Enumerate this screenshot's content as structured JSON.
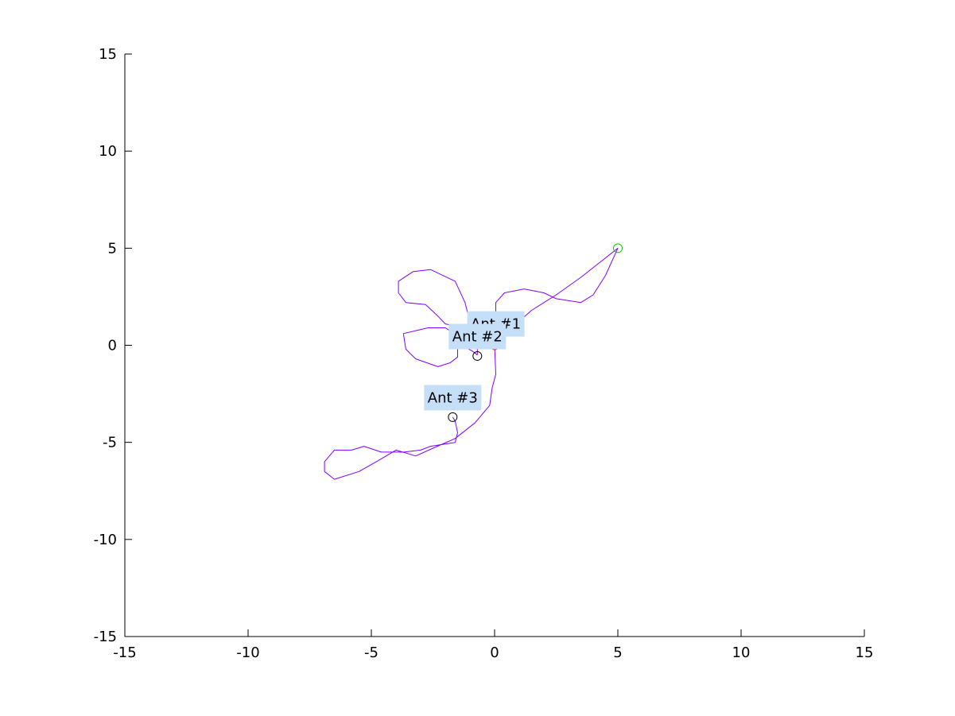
{
  "chart_data": {
    "type": "line",
    "xlim": [
      -15,
      15
    ],
    "ylim": [
      -15,
      15
    ],
    "xticks": [
      -15,
      -10,
      -5,
      0,
      5,
      10,
      15
    ],
    "yticks": [
      -15,
      -10,
      -5,
      0,
      5,
      10,
      15
    ],
    "xtick_labels": [
      "-15",
      "-10",
      "-5",
      "0",
      "5",
      "10",
      "15"
    ],
    "ytick_labels": [
      "-15",
      "-10",
      "-5",
      "0",
      "5",
      "10",
      "15"
    ],
    "grid": false,
    "title": "",
    "xlabel": "",
    "ylabel": "",
    "colors": {
      "trail": "#7f00ff",
      "origin_marker": "#ff0000",
      "target_marker": "#00cc00",
      "ant_marker": "#000000",
      "label_bg": "#c6dff8",
      "axis": "#000000"
    },
    "series": [
      {
        "values": [
          [
            0,
            0
          ],
          [
            0.05,
            -1.5
          ],
          [
            -0.1,
            -2.2
          ],
          [
            -0.2,
            -3.1
          ],
          [
            -0.8,
            -4.0
          ],
          [
            -1.6,
            -4.8
          ],
          [
            -2.5,
            -5.3
          ],
          [
            -3.2,
            -5.7
          ],
          [
            -4.0,
            -5.4
          ],
          [
            -4.8,
            -6.0
          ],
          [
            -5.5,
            -6.5
          ],
          [
            -6.5,
            -6.9
          ],
          [
            -6.9,
            -6.5
          ],
          [
            -6.9,
            -6.0
          ],
          [
            -6.5,
            -5.4
          ],
          [
            -5.8,
            -5.4
          ],
          [
            -5.3,
            -5.2
          ],
          [
            -4.6,
            -5.5
          ],
          [
            -3.7,
            -5.5
          ],
          [
            -3.0,
            -5.4
          ],
          [
            -2.6,
            -5.2
          ],
          [
            -1.6,
            -5.0
          ]
        ]
      },
      {
        "values": [
          [
            -1.6,
            -5.0
          ],
          [
            -1.5,
            -4.5
          ],
          [
            -1.6,
            -3.9
          ],
          [
            -1.7,
            -3.7
          ]
        ]
      },
      {
        "values": [
          [
            0.05,
            0
          ],
          [
            0.05,
            2.2
          ],
          [
            0.4,
            2.7
          ],
          [
            1.2,
            2.9
          ],
          [
            2.0,
            2.7
          ],
          [
            2.5,
            2.4
          ],
          [
            3.5,
            2.2
          ],
          [
            4.0,
            2.6
          ],
          [
            4.5,
            3.6
          ],
          [
            5.0,
            5.0
          ]
        ]
      },
      {
        "values": [
          [
            5.0,
            5.0
          ],
          [
            3.5,
            3.5
          ],
          [
            2.5,
            2.6
          ],
          [
            1.5,
            1.8
          ],
          [
            0.7,
            0.9
          ],
          [
            0.0,
            0.1
          ]
        ]
      },
      {
        "values": [
          [
            -0.7,
            -0.5
          ],
          [
            -0.9,
            -0.3
          ],
          [
            -1.2,
            -0.1
          ],
          [
            -1.5,
            0.5
          ],
          [
            -2.0,
            0.9
          ],
          [
            -2.7,
            0.9
          ],
          [
            -3.7,
            0.6
          ],
          [
            -3.6,
            -0.2
          ],
          [
            -3.2,
            -0.7
          ],
          [
            -2.3,
            -1.1
          ],
          [
            -1.8,
            -0.9
          ],
          [
            -1.5,
            -0.6
          ],
          [
            -1.5,
            0.3
          ],
          [
            -1.2,
            0.6
          ],
          [
            -1.0,
            1.2
          ],
          [
            -1.2,
            2.2
          ],
          [
            -1.6,
            3.3
          ],
          [
            -2.6,
            3.9
          ],
          [
            -3.3,
            3.8
          ],
          [
            -3.9,
            3.3
          ],
          [
            -3.9,
            2.7
          ],
          [
            -3.6,
            2.2
          ],
          [
            -2.8,
            2.1
          ],
          [
            -2.3,
            1.5
          ],
          [
            -2.0,
            1.1
          ],
          [
            -1.2,
            0.9
          ],
          [
            -0.8,
            0.6
          ],
          [
            -0.7,
            0.2
          ],
          [
            -0.7,
            -0.5
          ]
        ]
      }
    ],
    "markers": [
      {
        "id": "origin",
        "x": 0,
        "y": 0,
        "color": "#ff0000"
      },
      {
        "id": "target",
        "x": 5,
        "y": 5,
        "color": "#00cc00"
      },
      {
        "id": "ant-2",
        "x": -0.7,
        "y": -0.55,
        "color": "#000000"
      },
      {
        "id": "ant-3",
        "x": -1.7,
        "y": -3.7,
        "color": "#000000"
      }
    ],
    "annotations": [
      {
        "text": "Ant #1",
        "x": 0.05,
        "y": 1.1
      },
      {
        "text": "Ant #2",
        "x": -0.7,
        "y": 0.45
      },
      {
        "text": "Ant #3",
        "x": -1.7,
        "y": -2.7
      }
    ]
  }
}
